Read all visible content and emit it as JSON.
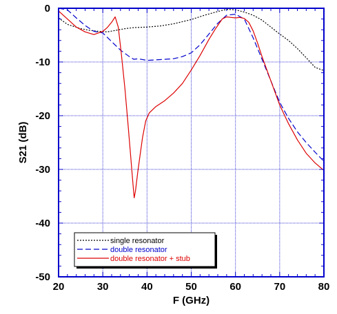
{
  "chart_data": {
    "type": "line",
    "title": "",
    "xlabel": "F (GHz)",
    "ylabel": "S21 (dB)",
    "xlim": [
      20,
      80
    ],
    "ylim": [
      -50,
      0
    ],
    "xticks": [
      20,
      30,
      40,
      50,
      60,
      70,
      80
    ],
    "yticks": [
      0,
      -10,
      -20,
      -30,
      -40,
      -50
    ],
    "grid": true,
    "legend_position": "bottom-left",
    "series": [
      {
        "name": "single resonator",
        "color": "#000000",
        "dash": "dotted",
        "x": [
          20,
          22,
          25,
          27,
          29,
          31,
          33,
          35,
          37,
          40,
          43,
          46,
          50,
          53,
          56,
          58,
          60,
          62,
          64,
          66,
          68,
          70,
          72,
          74,
          76,
          78,
          80
        ],
        "y": [
          -1.8,
          -3.0,
          -3.8,
          -4.1,
          -4.3,
          -4.4,
          -4.1,
          -3.8,
          -3.6,
          -3.5,
          -3.3,
          -2.9,
          -2.1,
          -1.3,
          -0.6,
          -0.2,
          -0.3,
          -0.7,
          -1.3,
          -2.2,
          -3.5,
          -4.8,
          -6.0,
          -7.5,
          -9.2,
          -11.0,
          -11.6
        ]
      },
      {
        "name": "double resonator",
        "color": "#0000cc",
        "dash": "dashed",
        "x": [
          20,
          22,
          24,
          26,
          28,
          30,
          32,
          34,
          36,
          37,
          38,
          40,
          42,
          44,
          46,
          48,
          50,
          52,
          54,
          56,
          58,
          60,
          62,
          64,
          66,
          68,
          70,
          72,
          74,
          76,
          78,
          80
        ],
        "y": [
          0,
          -0.3,
          -1.8,
          -3.2,
          -4.3,
          -4.6,
          -6.2,
          -7.8,
          -9.0,
          -9.5,
          -9.4,
          -9.7,
          -9.6,
          -9.5,
          -9.4,
          -9.0,
          -8.3,
          -6.8,
          -4.8,
          -2.8,
          -1.3,
          -1.1,
          -2.0,
          -5.5,
          -9.5,
          -13.5,
          -17.5,
          -20.5,
          -23.0,
          -25.0,
          -26.8,
          -28.5
        ]
      },
      {
        "name": "double resonator + stub",
        "color": "#dd0000",
        "dash": "solid",
        "x": [
          20,
          22,
          24,
          26,
          28,
          30,
          31,
          32,
          32.8,
          33.5,
          34.2,
          35,
          35.7,
          36.3,
          36.8,
          37.1,
          37.4,
          37.9,
          38.4,
          39,
          39.7,
          40.5,
          42,
          44,
          46,
          48,
          50,
          52,
          54,
          55.5,
          57,
          58,
          59,
          60,
          61,
          62,
          63,
          64,
          65,
          66,
          68,
          70,
          72,
          74,
          76,
          78,
          80
        ],
        "y": [
          -0.5,
          -2.0,
          -3.5,
          -4.4,
          -4.9,
          -4.3,
          -3.6,
          -2.6,
          -1.6,
          -3.5,
          -8.5,
          -15.0,
          -21.5,
          -27.5,
          -32.5,
          -35.3,
          -34.0,
          -30.5,
          -27.5,
          -24.0,
          -21.0,
          -19.5,
          -18.3,
          -17.2,
          -15.8,
          -14.0,
          -11.5,
          -8.8,
          -5.8,
          -3.8,
          -2.0,
          -1.6,
          -1.7,
          -1.8,
          -1.7,
          -1.9,
          -2.6,
          -4.2,
          -6.5,
          -9.0,
          -13.5,
          -18.0,
          -21.5,
          -24.5,
          -27.0,
          -28.8,
          -30.2
        ]
      }
    ]
  }
}
